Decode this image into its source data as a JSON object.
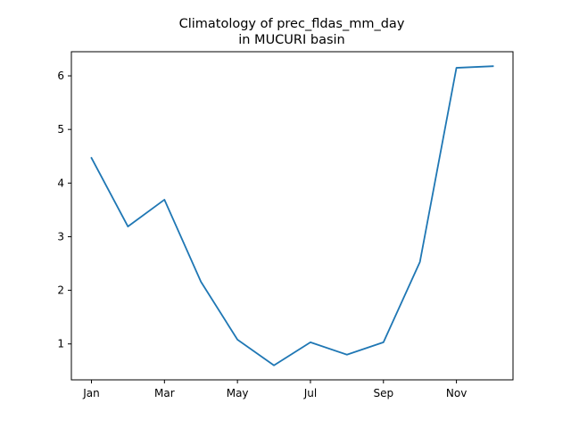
{
  "chart_data": {
    "type": "line",
    "title_lines": [
      "Climatology of prec_fldas_mm_day",
      "in MUCURI basin"
    ],
    "xlabel": "",
    "ylabel": "",
    "x": [
      1,
      2,
      3,
      4,
      5,
      6,
      7,
      8,
      9,
      10,
      11,
      12
    ],
    "x_ticks": [
      1,
      3,
      5,
      7,
      9,
      11
    ],
    "x_tick_labels": [
      "Jan",
      "Mar",
      "May",
      "Jul",
      "Sep",
      "Nov"
    ],
    "y_ticks": [
      1,
      2,
      3,
      4,
      5,
      6
    ],
    "y_tick_labels": [
      "1",
      "2",
      "3",
      "4",
      "5",
      "6"
    ],
    "xlim": [
      0.45,
      12.55
    ],
    "ylim": [
      0.33,
      6.45
    ],
    "grid": false,
    "series": [
      {
        "color": "#1f77b4",
        "values": [
          4.47,
          3.19,
          3.69,
          2.16,
          1.08,
          0.6,
          1.03,
          0.8,
          1.03,
          2.53,
          6.15,
          6.18
        ]
      }
    ]
  }
}
